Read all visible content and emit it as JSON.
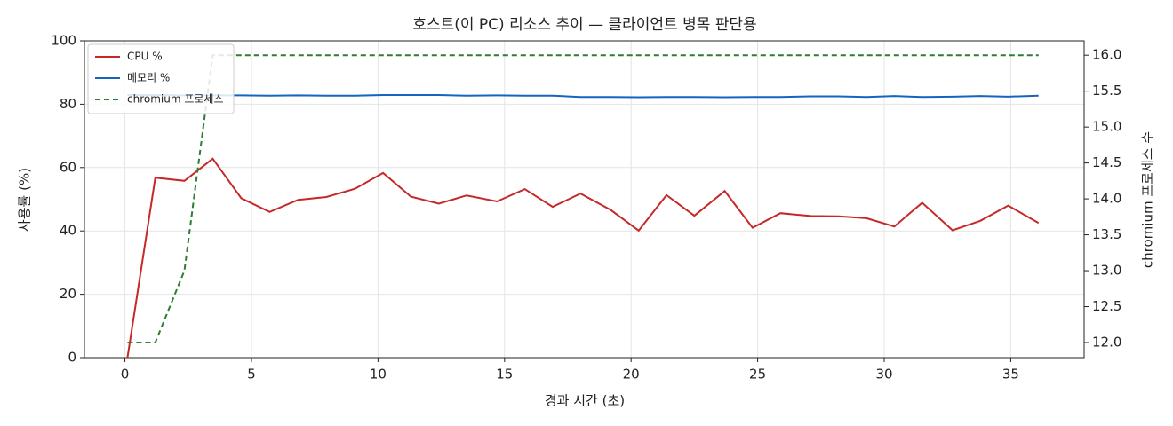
{
  "chart_data": {
    "type": "line",
    "title": "호스트(이 PC) 리소스 추이 — 클라이언트 병목 판단용",
    "x_label": "경과 시간 (초)",
    "y_label": "사용률 (%)",
    "y2_label": "chromium 프로세스 수",
    "x": [
      0.1,
      1.2,
      2.35,
      3.47,
      4.6,
      5.72,
      6.84,
      7.96,
      9.09,
      10.2,
      11.3,
      12.4,
      13.5,
      14.7,
      15.8,
      16.9,
      18.0,
      19.2,
      20.3,
      21.4,
      22.5,
      23.7,
      24.8,
      25.9,
      27.1,
      28.2,
      29.3,
      30.4,
      31.5,
      32.7,
      33.8,
      34.9,
      36.1
    ],
    "series": [
      {
        "name": "CPU %",
        "color": "#c62828",
        "axis": "y",
        "dashed": false,
        "values": [
          0,
          56.8,
          55.8,
          62.8,
          50.3,
          46.0,
          49.8,
          50.7,
          53.3,
          58.3,
          50.8,
          48.6,
          51.2,
          49.3,
          53.2,
          47.6,
          51.8,
          46.6,
          40.1,
          51.3,
          44.8,
          52.6,
          41.0,
          45.6,
          44.7,
          44.6,
          44.0,
          41.4,
          48.9,
          40.2,
          43.2,
          48.0,
          42.5
        ]
      },
      {
        "name": "메모리 %",
        "color": "#1565c0",
        "axis": "y",
        "dashed": false,
        "values": [
          82.9,
          82.9,
          82.8,
          82.8,
          82.8,
          82.7,
          82.8,
          82.7,
          82.7,
          82.9,
          82.9,
          82.9,
          82.7,
          82.8,
          82.7,
          82.7,
          82.3,
          82.3,
          82.2,
          82.3,
          82.3,
          82.2,
          82.3,
          82.3,
          82.5,
          82.5,
          82.3,
          82.6,
          82.3,
          82.4,
          82.6,
          82.4,
          82.7
        ]
      },
      {
        "name": "chromium 프로세스",
        "color": "#2e7d32",
        "axis": "y2",
        "dashed": true,
        "values": [
          12,
          12,
          13,
          16,
          16,
          16,
          16,
          16,
          16,
          16,
          16,
          16,
          16,
          16,
          16,
          16,
          16,
          16,
          16,
          16,
          16,
          16,
          16,
          16,
          16,
          16,
          16,
          16,
          16,
          16,
          16,
          16,
          16
        ]
      }
    ],
    "xlim": [
      -1.6,
      37.9
    ],
    "xticks": [
      0,
      5,
      10,
      15,
      20,
      25,
      30,
      35
    ],
    "ylim": [
      0,
      100
    ],
    "yticks": [
      0,
      20,
      40,
      60,
      80,
      100
    ],
    "y2lim": [
      11.79,
      16.2
    ],
    "y2ticks": [
      {
        "value": 12,
        "label": "12.0"
      },
      {
        "value": 12.5,
        "label": "12.5"
      },
      {
        "value": 13,
        "label": "13.0"
      },
      {
        "value": 13.5,
        "label": "13.5"
      },
      {
        "value": 14,
        "label": "14.0"
      },
      {
        "value": 14.5,
        "label": "14.5"
      },
      {
        "value": 15,
        "label": "15.0"
      },
      {
        "value": 15.5,
        "label": "15.5"
      },
      {
        "value": 16,
        "label": "16.0"
      }
    ],
    "grid": true,
    "legend": "upper-left"
  }
}
